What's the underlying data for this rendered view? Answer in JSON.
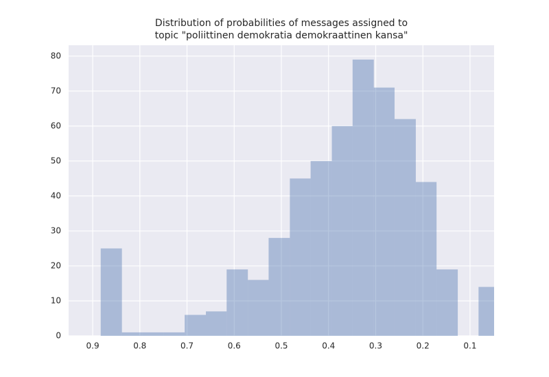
{
  "chart_data": {
    "type": "histogram",
    "title": [
      "Distribution of probabilities of messages assigned to",
      " topic \"poliittinen demokratia demokraattinen kansa\""
    ],
    "bins": [
      0.883,
      0.838,
      0.794,
      0.749,
      0.705,
      0.66,
      0.616,
      0.571,
      0.527,
      0.482,
      0.438,
      0.393,
      0.349,
      0.304,
      0.26,
      0.215,
      0.171,
      0.126,
      0.082,
      0.037
    ],
    "counts": [
      25,
      1,
      1,
      1,
      6,
      7,
      19,
      16,
      28,
      45,
      50,
      60,
      79,
      71,
      62,
      44,
      19,
      0,
      14
    ],
    "color": "#4c72b0",
    "opacity": 0.4,
    "xlim": [
      0.951,
      0.049
    ],
    "xticks": [
      0.9,
      0.8,
      0.7,
      0.6,
      0.5,
      0.4,
      0.3,
      0.2,
      0.1
    ],
    "ylim": [
      0,
      83.1
    ],
    "yticks": [
      0,
      10,
      20,
      30,
      40,
      50,
      60,
      70,
      80
    ],
    "grid": true
  }
}
